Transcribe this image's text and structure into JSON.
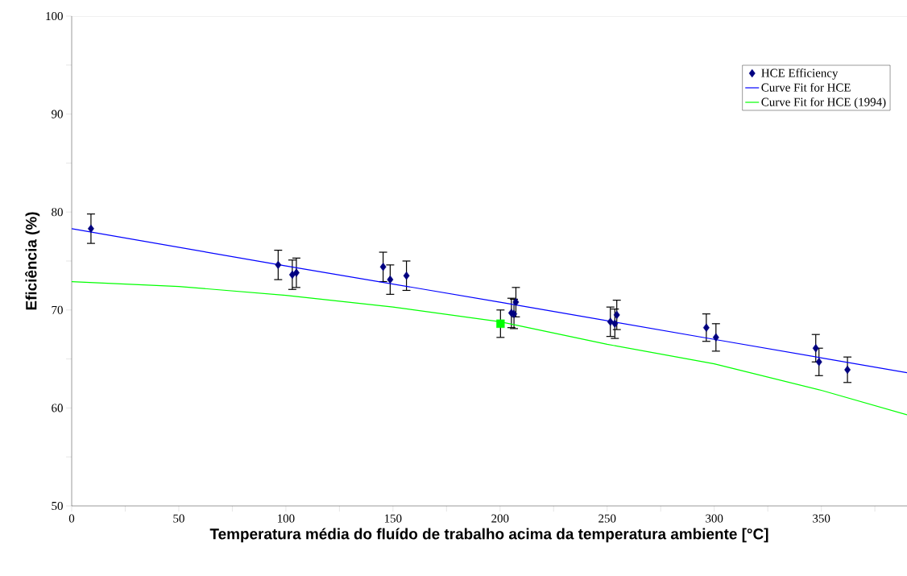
{
  "chart_data": {
    "type": "scatter",
    "xlabel": "Temperatura média do fluído de trabalho acima da temperatura ambiente [°C]",
    "ylabel": "Eficiência (%)",
    "xlim": [
      0,
      390
    ],
    "ylim": [
      50,
      100
    ],
    "xticks": [
      0,
      {
        "value": 25,
        "label": null
      },
      50,
      {
        "value": 75,
        "label": null
      },
      100,
      {
        "value": 125,
        "label": null
      },
      150,
      {
        "value": 175,
        "label": null
      },
      200,
      {
        "value": 225,
        "label": null
      },
      250,
      {
        "value": 275,
        "label": null
      },
      300,
      {
        "value": 325,
        "label": null
      },
      350,
      {
        "value": 375,
        "label": null
      }
    ],
    "yticks": [
      50,
      {
        "value": 55,
        "label": null
      },
      60,
      {
        "value": 65,
        "label": null
      },
      70,
      {
        "value": 75,
        "label": null
      },
      80,
      {
        "value": 85,
        "label": null
      },
      90,
      {
        "value": 95,
        "label": null
      },
      100
    ],
    "grid": false,
    "legend": "top right",
    "series": [
      {
        "name": "HCE Efficiency",
        "marker": "diamond",
        "color": "#000080",
        "x": [
          9.0,
          96.4,
          103.0,
          104.9,
          145.4,
          148.7,
          156.3,
          205.3,
          206.5,
          207.4,
          251.5,
          253.6,
          254.5,
          296.3,
          300.8,
          347.4,
          348.9,
          362.2
        ],
        "values": [
          78.3,
          74.6,
          73.6,
          73.8,
          74.4,
          73.1,
          73.5,
          69.7,
          69.6,
          70.8,
          68.8,
          68.6,
          69.5,
          68.2,
          67.2,
          66.1,
          64.7,
          63.9
        ],
        "errors": [
          1.5,
          1.5,
          1.5,
          1.5,
          1.5,
          1.5,
          1.5,
          1.5,
          1.5,
          1.5,
          1.5,
          1.5,
          1.5,
          1.4,
          1.4,
          1.4,
          1.4,
          1.3
        ]
      },
      {
        "name": "Curve Fit for HCE",
        "type": "line",
        "marker": "none",
        "color": "#0000ff",
        "x": [
          0,
          100,
          200,
          300,
          390
        ],
        "values": [
          78.3,
          74.5,
          70.8,
          67.0,
          63.6
        ]
      },
      {
        "name": "Curve Fit for HCE (1994)",
        "type": "line",
        "marker": "none",
        "color": "#00ff00",
        "x": [
          0,
          50,
          100,
          150,
          200,
          250,
          300,
          350,
          390
        ],
        "values": [
          72.9,
          72.4,
          71.5,
          70.3,
          68.8,
          66.5,
          64.5,
          61.8,
          59.3
        ]
      },
      {
        "marker": "square",
        "color": "#00ff00",
        "x": [
          200.2
        ],
        "values": [
          68.6
        ],
        "errors": [
          1.4
        ]
      }
    ]
  }
}
